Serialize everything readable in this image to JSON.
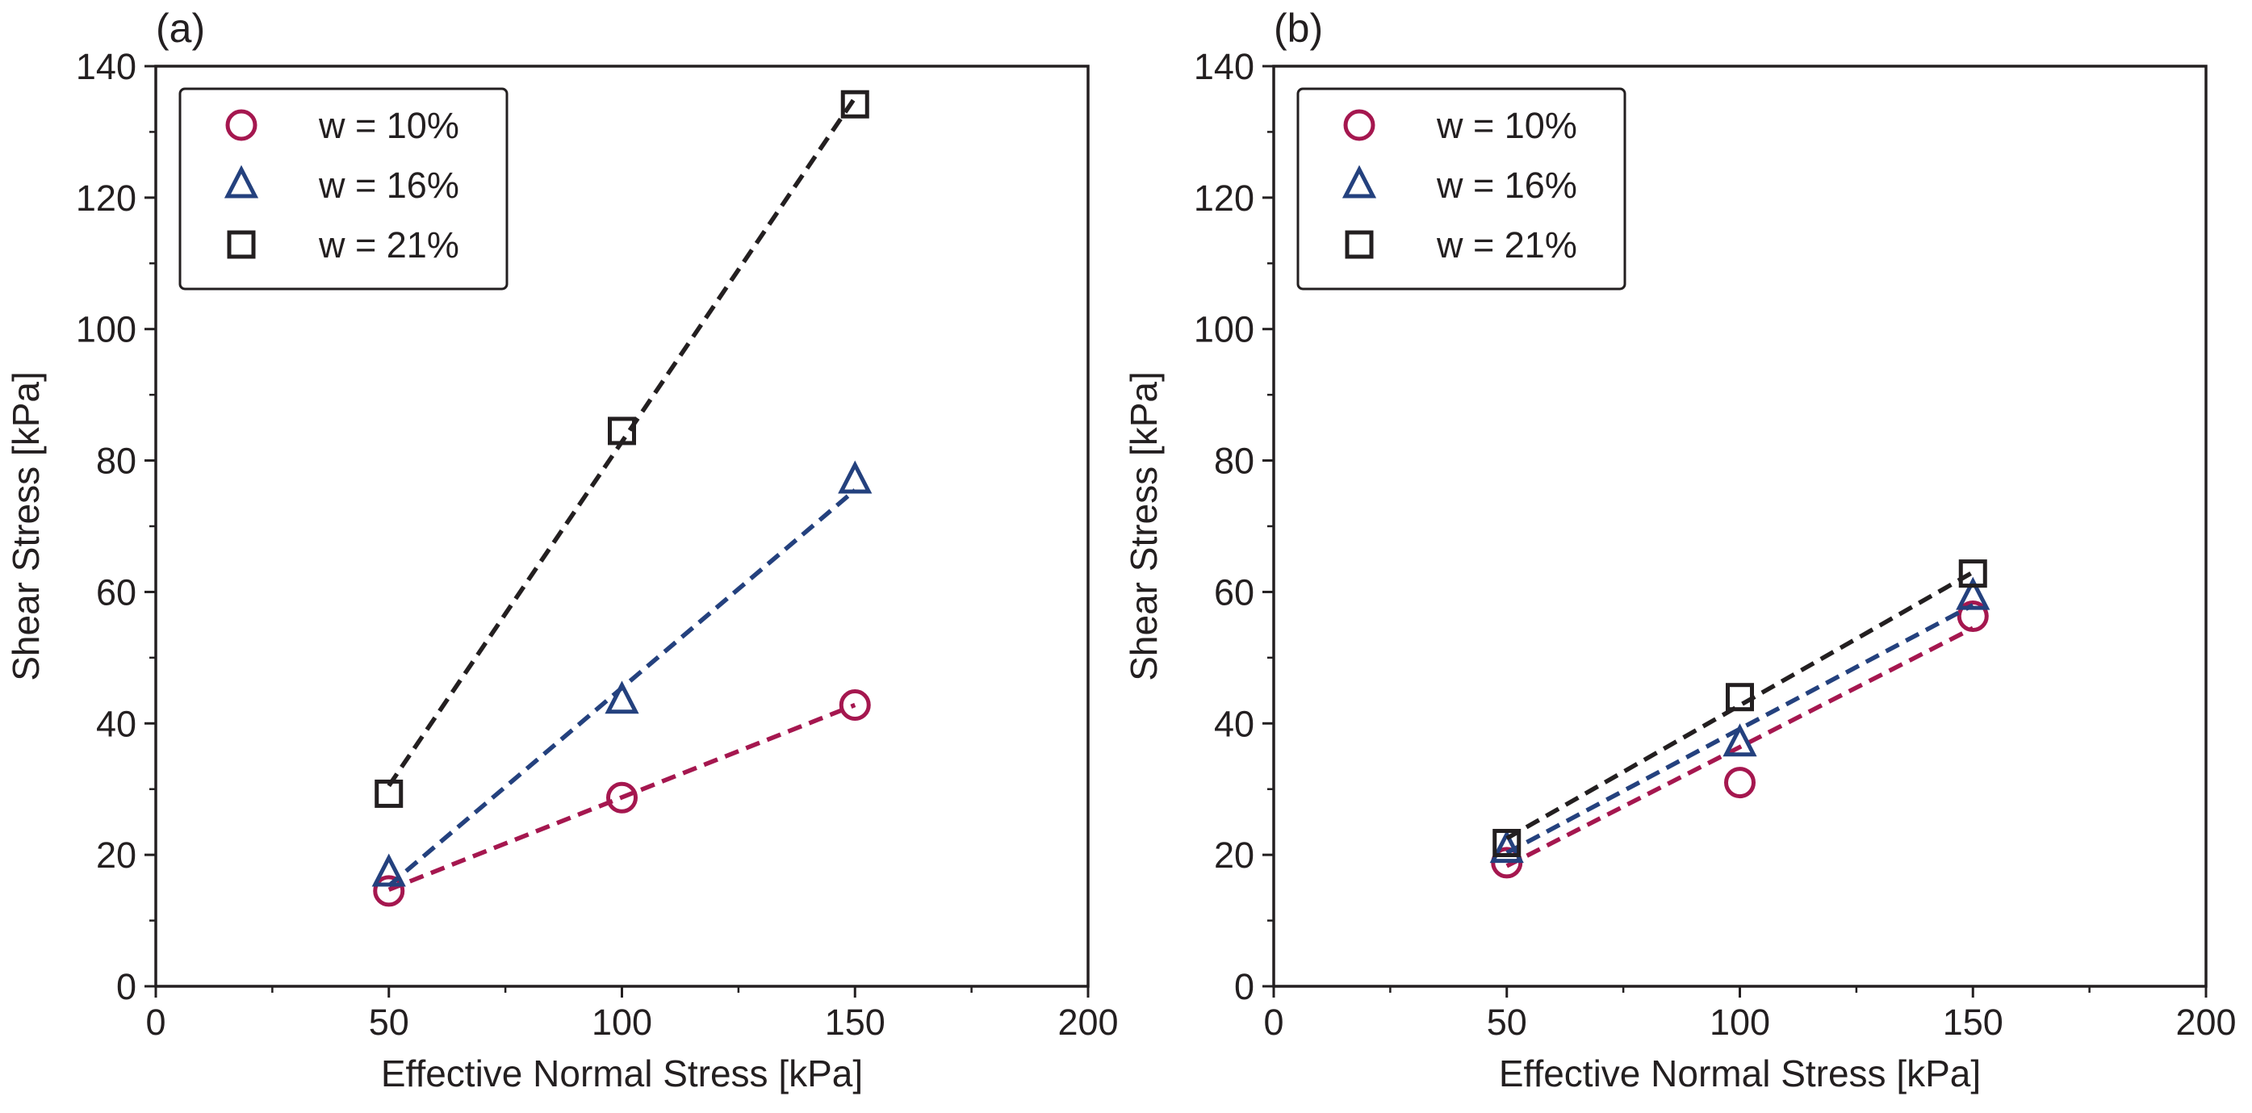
{
  "colors": {
    "w10": "#a5174f",
    "w16": "#24417e",
    "w21": "#231f20",
    "axis": "#231f20",
    "background": "#ffffff"
  },
  "chart_data": [
    {
      "type": "scatter",
      "panel_label": "(a)",
      "title": "",
      "xlabel": "Effective Normal Stress [kPa]",
      "ylabel": "Shear Stress [kPa]",
      "xlim": [
        0,
        200
      ],
      "ylim": [
        0,
        140
      ],
      "xticks": [
        0,
        50,
        100,
        150,
        200
      ],
      "yticks": [
        0,
        20,
        40,
        60,
        80,
        100,
        120,
        140
      ],
      "grid": false,
      "legend_position": "top-left",
      "series": [
        {
          "name": "w = 10%",
          "marker": "circle",
          "color_key": "w10",
          "x": [
            50,
            100,
            150
          ],
          "y": [
            14.5,
            28.7,
            42.8
          ],
          "fit_line": {
            "x": [
              50,
              150
            ],
            "y": [
              14.7,
              42.8
            ]
          }
        },
        {
          "name": "w = 16%",
          "marker": "triangle",
          "color_key": "w16",
          "x": [
            50,
            100,
            150
          ],
          "y": [
            17.2,
            43.5,
            77.0
          ],
          "fit_line": {
            "x": [
              50,
              150
            ],
            "y": [
              15.3,
              75.5
            ]
          }
        },
        {
          "name": "w = 21%",
          "marker": "square",
          "color_key": "w21",
          "x": [
            50,
            100,
            150
          ],
          "y": [
            29.3,
            84.5,
            134.2
          ],
          "fit_line": {
            "x": [
              50,
              150
            ],
            "y": [
              30.5,
              135.2
            ]
          }
        }
      ]
    },
    {
      "type": "scatter",
      "panel_label": "(b)",
      "title": "",
      "xlabel": "Effective Normal Stress [kPa]",
      "ylabel": "Shear Stress [kPa]",
      "xlim": [
        0,
        200
      ],
      "ylim": [
        0,
        140
      ],
      "xticks": [
        0,
        50,
        100,
        150,
        200
      ],
      "yticks": [
        0,
        20,
        40,
        60,
        80,
        100,
        120,
        140
      ],
      "grid": false,
      "legend_position": "top-left",
      "series": [
        {
          "name": "w = 10%",
          "marker": "circle",
          "color_key": "w10",
          "x": [
            50,
            100,
            150
          ],
          "y": [
            18.8,
            31.0,
            56.3
          ],
          "fit_line": {
            "x": [
              50,
              150
            ],
            "y": [
              18.3,
              54.5
            ]
          }
        },
        {
          "name": "w = 16%",
          "marker": "triangle",
          "color_key": "w16",
          "x": [
            50,
            100,
            150
          ],
          "y": [
            20.8,
            37.0,
            59.3
          ],
          "fit_line": {
            "x": [
              50,
              150
            ],
            "y": [
              20.3,
              58.0
            ]
          }
        },
        {
          "name": "w = 21%",
          "marker": "square",
          "color_key": "w21",
          "x": [
            50,
            100,
            150
          ],
          "y": [
            21.8,
            44.0,
            62.8
          ],
          "fit_line": {
            "x": [
              50,
              150
            ],
            "y": [
              22.5,
              63.0
            ]
          }
        }
      ]
    }
  ]
}
